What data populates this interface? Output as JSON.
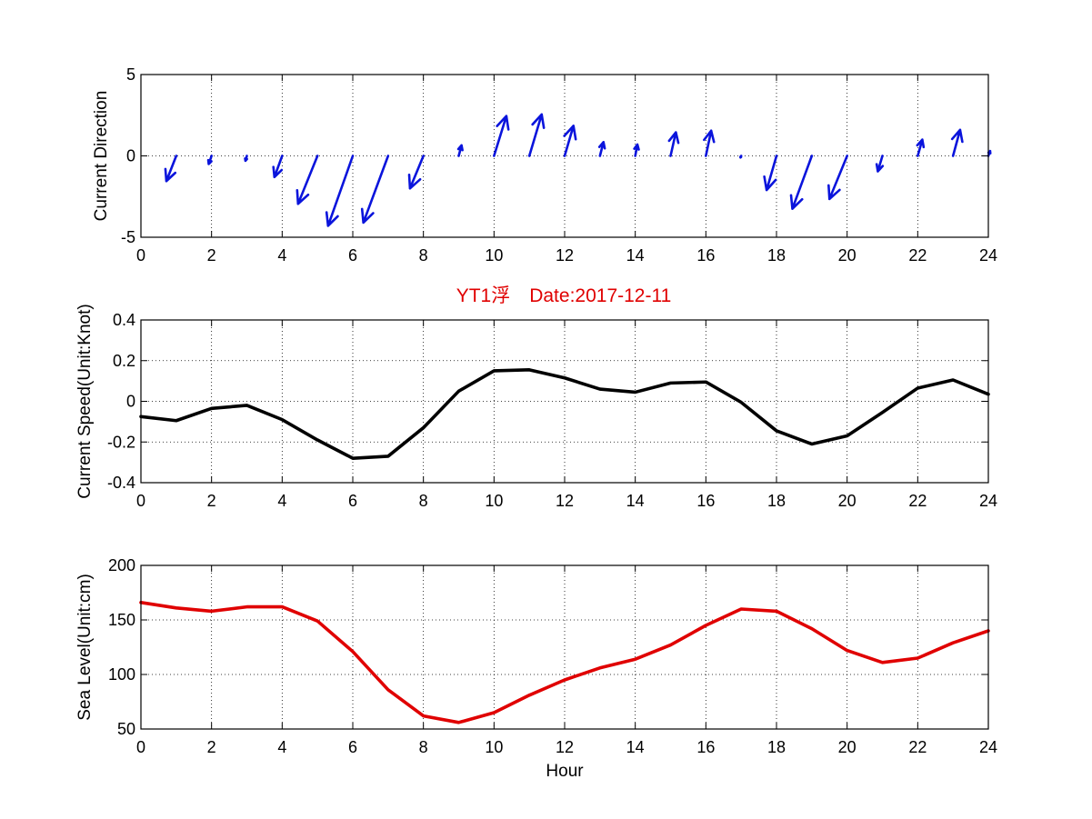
{
  "figure_title": "YT1浮　Date:2017-12-11",
  "colors": {
    "quiver": "#0a14dc",
    "speed": "#000000",
    "sea_level": "#e00000",
    "title": "#e00000"
  },
  "chart_data": [
    {
      "type": "quiver",
      "ylabel": "Current Direction",
      "xlabel": "",
      "xlim": [
        0,
        24
      ],
      "ylim": [
        -5,
        5
      ],
      "xticks": [
        0,
        2,
        4,
        6,
        8,
        10,
        12,
        14,
        16,
        18,
        20,
        22,
        24
      ],
      "yticks": [
        -5,
        0,
        5
      ],
      "grid": true,
      "x": [
        0,
        1,
        2,
        3,
        4,
        5,
        6,
        7,
        8,
        9,
        10,
        11,
        12,
        13,
        14,
        15,
        16,
        17,
        18,
        19,
        20,
        21,
        22,
        23,
        24
      ],
      "u": [
        0,
        -0.28,
        -0.08,
        -0.04,
        -0.22,
        -0.55,
        -0.7,
        -0.7,
        -0.38,
        0.08,
        0.35,
        0.35,
        0.25,
        0.1,
        0.06,
        0.15,
        0.15,
        -0.02,
        -0.28,
        -0.55,
        -0.5,
        -0.13,
        0.13,
        0.2,
        0.05
      ],
      "v": [
        0,
        -1.55,
        -0.5,
        -0.3,
        -1.3,
        -2.95,
        -4.3,
        -4.1,
        -2.0,
        0.65,
        2.45,
        2.55,
        1.85,
        0.85,
        0.7,
        1.45,
        1.55,
        -0.1,
        -2.1,
        -3.25,
        -2.65,
        -0.95,
        1.0,
        1.6,
        0.3
      ]
    },
    {
      "type": "line",
      "ylabel": "Current Speed(Unit:Knot)",
      "xlabel": "",
      "xlim": [
        0,
        24
      ],
      "ylim": [
        -0.4,
        0.4
      ],
      "xticks": [
        0,
        2,
        4,
        6,
        8,
        10,
        12,
        14,
        16,
        18,
        20,
        22,
        24
      ],
      "yticks": [
        -0.4,
        -0.2,
        0,
        0.2,
        0.4
      ],
      "grid": true,
      "x": [
        0,
        1,
        2,
        3,
        4,
        5,
        6,
        7,
        8,
        9,
        10,
        11,
        12,
        13,
        14,
        15,
        16,
        17,
        18,
        19,
        20,
        21,
        22,
        23,
        24
      ],
      "values": [
        -0.075,
        -0.095,
        -0.035,
        -0.02,
        -0.09,
        -0.19,
        -0.28,
        -0.27,
        -0.13,
        0.05,
        0.15,
        0.155,
        0.115,
        0.06,
        0.045,
        0.09,
        0.095,
        -0.005,
        -0.145,
        -0.21,
        -0.17,
        -0.055,
        0.065,
        0.105,
        0.035
      ]
    },
    {
      "type": "line",
      "ylabel": "Sea Level(Unit:cm)",
      "xlabel": "Hour",
      "xlim": [
        0,
        24
      ],
      "ylim": [
        50,
        200
      ],
      "xticks": [
        0,
        2,
        4,
        6,
        8,
        10,
        12,
        14,
        16,
        18,
        20,
        22,
        24
      ],
      "yticks": [
        50,
        100,
        150,
        200
      ],
      "grid": true,
      "x": [
        0,
        1,
        2,
        3,
        4,
        5,
        6,
        7,
        8,
        9,
        10,
        11,
        12,
        13,
        14,
        15,
        16,
        17,
        18,
        19,
        20,
        21,
        22,
        23,
        24
      ],
      "values": [
        166,
        161,
        158,
        162,
        162,
        149,
        121,
        86,
        62,
        56,
        65,
        81,
        95,
        106,
        114,
        127,
        145,
        160,
        158,
        142,
        122,
        111,
        115,
        129,
        140
      ]
    }
  ]
}
